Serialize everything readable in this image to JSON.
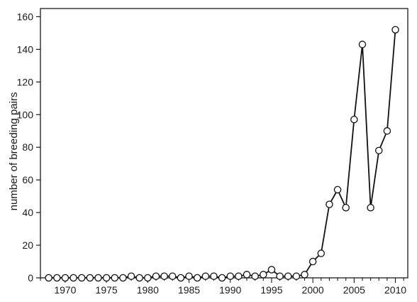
{
  "chart_data": {
    "type": "line",
    "title": "",
    "xlabel": "",
    "ylabel": "number of breeding pairs",
    "xlim": [
      1967,
      2011.5
    ],
    "ylim": [
      0,
      165
    ],
    "x_ticks": [
      1970,
      1975,
      1980,
      1985,
      1990,
      1995,
      2000,
      2005,
      2010
    ],
    "x_tick_labels": [
      "1970",
      "1975",
      "1980",
      "1985",
      "1990",
      "1995",
      "2000",
      "2005",
      "2010"
    ],
    "y_ticks": [
      0,
      20,
      40,
      60,
      80,
      100,
      120,
      140,
      160
    ],
    "y_tick_labels": [
      "0",
      "20",
      "40",
      "60",
      "80",
      "100",
      "120",
      "140",
      "160"
    ],
    "x_minor_ticks_every": 1,
    "grid": false,
    "marker": "open-circle",
    "series": [
      {
        "x": [
          1968,
          1969,
          1970,
          1971,
          1972,
          1973,
          1974,
          1975,
          1976,
          1977,
          1978,
          1979,
          1980,
          1981,
          1982,
          1983,
          1984,
          1985,
          1986,
          1987,
          1988,
          1989,
          1990,
          1991,
          1992,
          1993,
          1994,
          1995,
          1996,
          1997,
          1998,
          1999,
          2000,
          2001,
          2002,
          2003,
          2004,
          2005,
          2006,
          2007,
          2008,
          2009,
          2010
        ],
        "values": [
          0,
          0,
          0,
          0,
          0,
          0,
          0,
          0,
          0,
          0,
          1,
          0,
          0,
          1,
          1,
          1,
          0,
          1,
          0,
          1,
          1,
          0,
          1,
          1,
          2,
          1,
          2,
          5,
          1,
          1,
          1,
          2,
          10,
          15,
          45,
          54,
          43,
          97,
          143,
          43,
          78,
          90,
          152
        ]
      }
    ]
  }
}
